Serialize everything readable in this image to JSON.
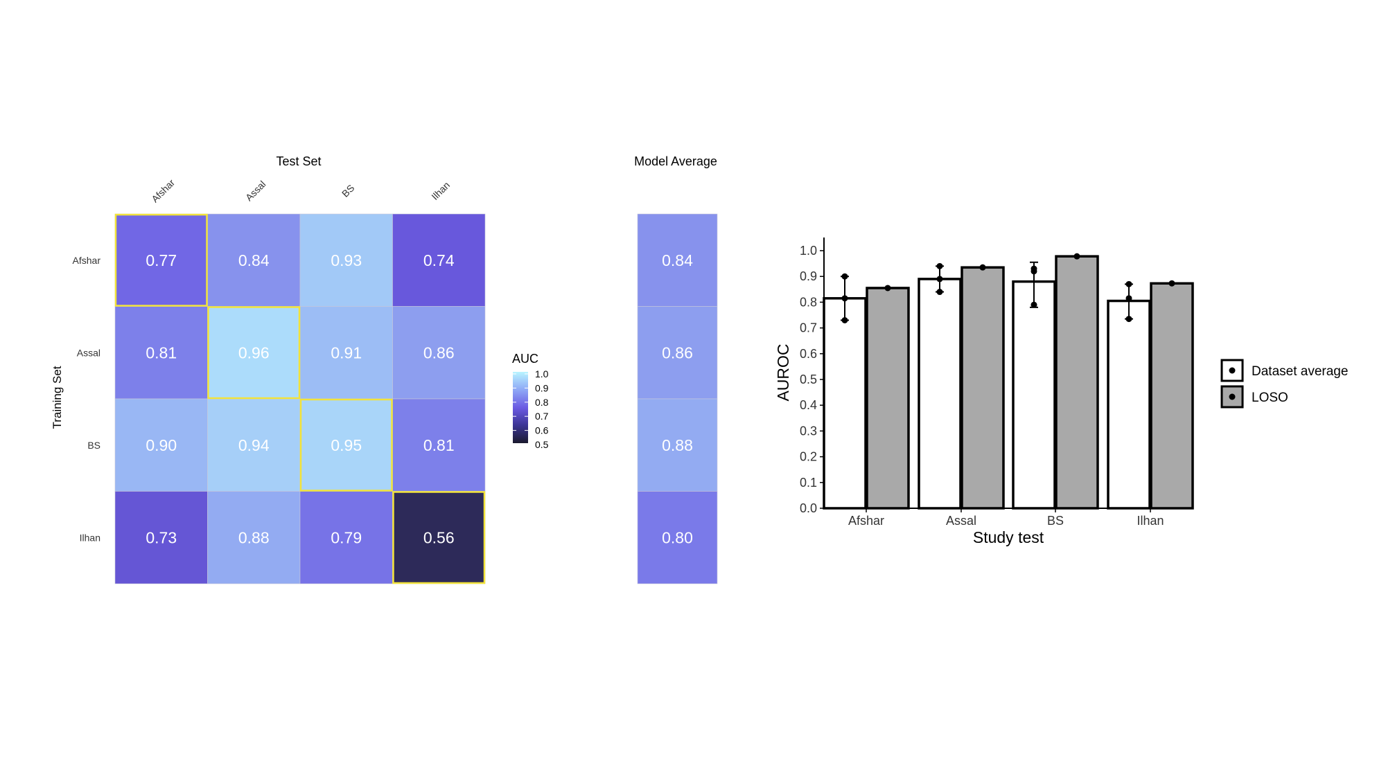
{
  "chart_data": [
    {
      "type": "heatmap",
      "title": "Test Set",
      "xlabel": "Test Set",
      "ylabel": "Training Set",
      "columns": [
        "Afshar",
        "Assal",
        "BS",
        "Ilhan"
      ],
      "rows": [
        "Afshar",
        "Assal",
        "BS",
        "Ilhan"
      ],
      "values": [
        [
          0.77,
          0.84,
          0.93,
          0.74
        ],
        [
          0.81,
          0.96,
          0.91,
          0.86
        ],
        [
          0.9,
          0.94,
          0.95,
          0.81
        ],
        [
          0.73,
          0.88,
          0.79,
          0.56
        ]
      ],
      "value_labels": [
        [
          "0.77",
          "0.84",
          "0.93",
          "0.74"
        ],
        [
          "0.81",
          "0.96",
          "0.91",
          "0.86"
        ],
        [
          "0.90",
          "0.94",
          "0.95",
          "0.81"
        ],
        [
          "0.73",
          "0.88",
          "0.79",
          "0.56"
        ]
      ],
      "highlight": "diagonal",
      "highlight_color": "#f2e33a",
      "colorscale": {
        "range": [
          0.5,
          1.0
        ],
        "low": "#1a1a2e",
        "mid": "#6b5be3",
        "high": "#b8f4ff"
      },
      "legend": {
        "title": "AUC",
        "ticks": [
          "1.0",
          "0.9",
          "0.8",
          "0.7",
          "0.6",
          "0.5"
        ],
        "placement": "right"
      }
    },
    {
      "type": "heatmap",
      "title": "Model Average",
      "rows": [
        "Afshar",
        "Assal",
        "BS",
        "Ilhan"
      ],
      "values": [
        0.84,
        0.86,
        0.88,
        0.8
      ],
      "value_labels": [
        "0.84",
        "0.86",
        "0.88",
        "0.80"
      ]
    },
    {
      "type": "bar",
      "categories": [
        "Afshar",
        "Assal",
        "BS",
        "Ilhan"
      ],
      "xlabel": "Study test",
      "ylabel": "AUROC",
      "ylim": [
        0,
        1.0
      ],
      "yticks": [
        "0.0",
        "0.1",
        "0.2",
        "0.3",
        "0.4",
        "0.5",
        "0.6",
        "0.7",
        "0.8",
        "0.9",
        "1.0"
      ],
      "series": [
        {
          "name": "Dataset average",
          "color": "#ffffff",
          "values": [
            0.815,
            0.89,
            0.88,
            0.805
          ],
          "error_low": [
            0.73,
            0.84,
            0.78,
            0.735
          ],
          "error_high": [
            0.9,
            0.94,
            0.955,
            0.87
          ],
          "points": [
            [
              0.9,
              0.815,
              0.73
            ],
            [
              0.94,
              0.89,
              0.84
            ],
            [
              0.93,
              0.92,
              0.79
            ],
            [
              0.87,
              0.815,
              0.735
            ]
          ]
        },
        {
          "name": "LOSO",
          "color": "#a9a9a9",
          "values": [
            0.855,
            0.935,
            0.978,
            0.873
          ],
          "points": [
            [
              0.855
            ],
            [
              0.935
            ],
            [
              0.978
            ],
            [
              0.873
            ]
          ]
        }
      ],
      "legend": {
        "placement": "right"
      }
    }
  ]
}
